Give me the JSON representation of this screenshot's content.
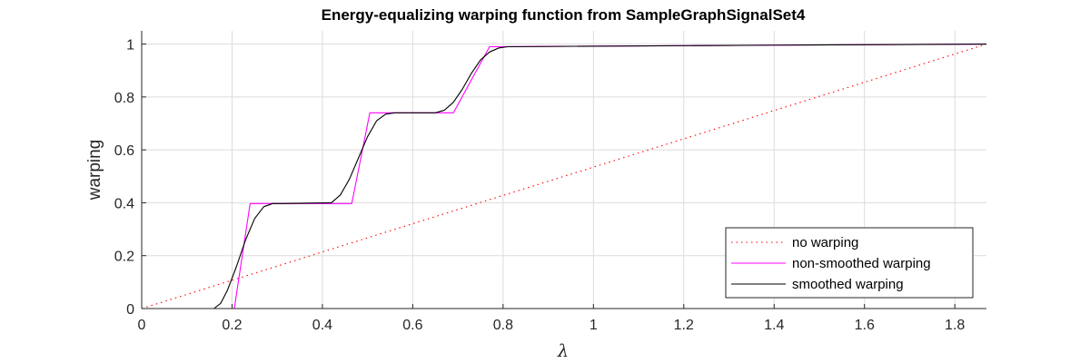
{
  "chart_data": {
    "type": "line",
    "title": "Energy-equalizing warping function from SampleGraphSignalSet4",
    "xlabel": "λ",
    "ylabel": "warping",
    "xlim": [
      0,
      1.87
    ],
    "ylim": [
      0,
      1.05
    ],
    "xticks": [
      0,
      0.2,
      0.4,
      0.6,
      0.8,
      1,
      1.2,
      1.4,
      1.6,
      1.8
    ],
    "xtick_labels": [
      "0",
      "0.2",
      "0.4",
      "0.6",
      "0.8",
      "1",
      "1.2",
      "1.4",
      "1.6",
      "1.8"
    ],
    "yticks": [
      0,
      0.2,
      0.4,
      0.6,
      0.8,
      1
    ],
    "ytick_labels": [
      "0",
      "0.2",
      "0.4",
      "0.6",
      "0.8",
      "1"
    ],
    "grid": true,
    "legend_position": "bottom-right",
    "series": [
      {
        "name": "no warping",
        "color": "#ff0000",
        "style": "dotted",
        "x": [
          0,
          1.87
        ],
        "y": [
          0,
          1
        ]
      },
      {
        "name": "non-smoothed warping",
        "color": "#ff00ff",
        "style": "solid",
        "x": [
          0,
          0.205,
          0.24,
          0.465,
          0.505,
          0.69,
          0.77,
          1.87
        ],
        "y": [
          0,
          0,
          0.397,
          0.397,
          0.74,
          0.74,
          0.99,
          1
        ]
      },
      {
        "name": "smoothed warping",
        "color": "#000000",
        "style": "solid",
        "x": [
          0,
          0.16,
          0.175,
          0.19,
          0.21,
          0.23,
          0.25,
          0.27,
          0.29,
          0.31,
          0.42,
          0.44,
          0.46,
          0.48,
          0.5,
          0.52,
          0.54,
          0.56,
          0.65,
          0.67,
          0.69,
          0.71,
          0.73,
          0.75,
          0.77,
          0.79,
          0.81,
          1.0,
          1.4,
          1.87
        ],
        "y": [
          0,
          0,
          0.02,
          0.07,
          0.16,
          0.26,
          0.34,
          0.385,
          0.397,
          0.397,
          0.4,
          0.43,
          0.49,
          0.57,
          0.65,
          0.71,
          0.735,
          0.74,
          0.74,
          0.75,
          0.78,
          0.83,
          0.89,
          0.94,
          0.97,
          0.985,
          0.99,
          0.992,
          0.996,
          1
        ]
      }
    ]
  }
}
